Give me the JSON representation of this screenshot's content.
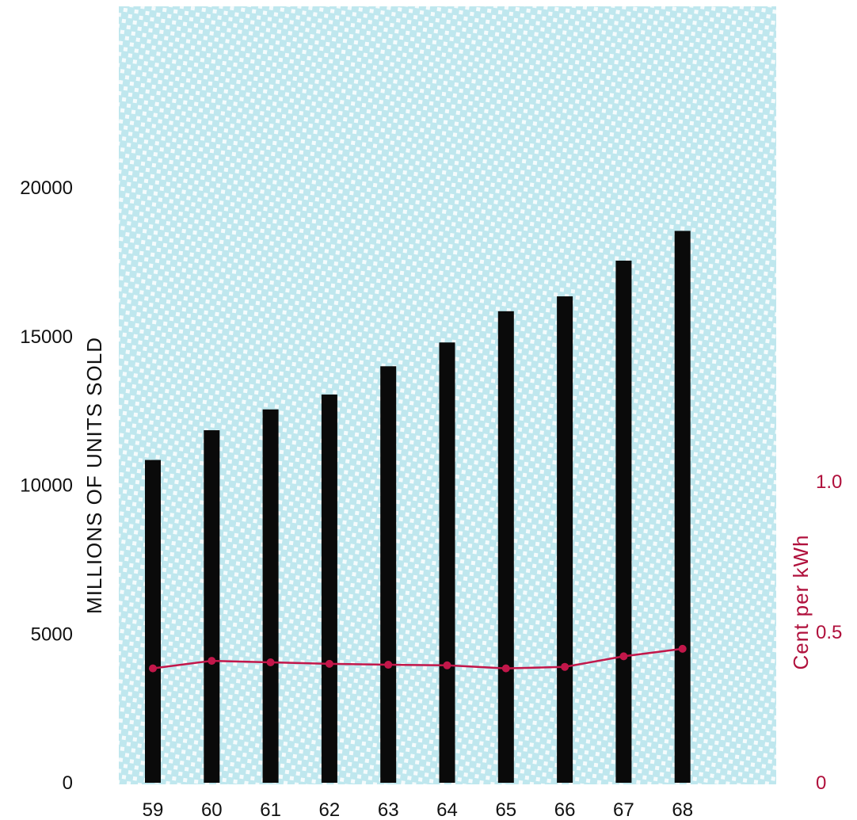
{
  "chart_data": {
    "type": "bar",
    "title": "",
    "categories": [
      "59",
      "60",
      "61",
      "62",
      "63",
      "64",
      "65",
      "66",
      "67",
      "68"
    ],
    "series": [
      {
        "name": "",
        "type": "bar",
        "axis": "left",
        "values": [
          10850,
          11850,
          12550,
          13050,
          14000,
          14800,
          15850,
          16350,
          17550,
          18550
        ]
      },
      {
        "name": "",
        "type": "line",
        "axis": "right",
        "values": [
          0.38,
          0.405,
          0.4,
          0.395,
          0.392,
          0.39,
          0.38,
          0.385,
          0.42,
          0.445
        ]
      }
    ],
    "y_left": {
      "label": "MILLIONS OF UNITS SOLD",
      "ticks": [
        "0",
        "5000",
        "10000",
        "15000",
        "20000"
      ],
      "tick_values": [
        0,
        5000,
        10000,
        15000,
        20000
      ],
      "range": [
        0,
        20000
      ]
    },
    "y_right": {
      "label": "Cent per kWh",
      "ticks": [
        "0",
        "0.5",
        "1.0"
      ],
      "tick_values": [
        0,
        0.5,
        1.0
      ],
      "range": [
        0,
        1.0
      ]
    },
    "grid": false,
    "legend": "none",
    "colors": {
      "bar": "#0a0a0a",
      "line": "#c2174a",
      "right_axis": "#b0103c",
      "left_axis": "#111111",
      "background_fill": "#bfe7ee",
      "background_dots": "#ffffff"
    }
  }
}
